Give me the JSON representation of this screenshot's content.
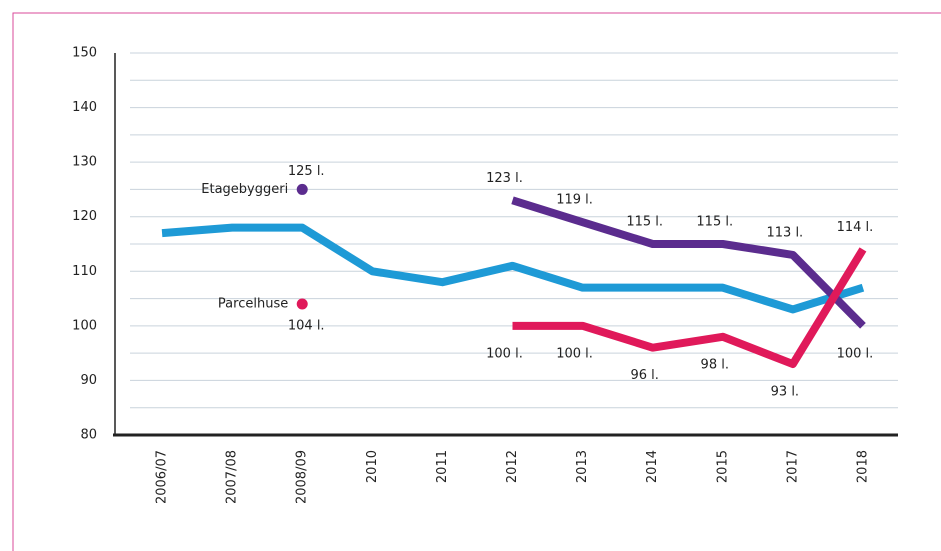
{
  "chart_data": {
    "type": "line",
    "categories": [
      "2006/07",
      "2007/08",
      "2008/09",
      "2010",
      "2011",
      "2012",
      "2013",
      "2014",
      "2015",
      "2017",
      "2018"
    ],
    "series": [
      {
        "color": "#1e9ad6",
        "values": [
          117,
          118,
          118,
          110,
          108,
          111,
          107,
          107,
          107,
          103,
          107
        ]
      },
      {
        "name": "Etagebyggeri",
        "color": "#5b2c8e",
        "values": [
          null,
          null,
          null,
          null,
          null,
          123,
          119,
          115,
          115,
          113,
          100
        ],
        "value_labels": [
          null,
          null,
          null,
          null,
          null,
          "123 l.",
          "119 l.",
          "115 l.",
          "115 l.",
          "113 l.",
          "100 l."
        ],
        "legend_point": {
          "x": "2008/09",
          "value": 125,
          "label": "125 l."
        }
      },
      {
        "name": "Parcelhuse",
        "color": "#e0195a",
        "values": [
          null,
          null,
          null,
          null,
          null,
          100,
          100,
          96,
          98,
          93,
          114
        ],
        "value_labels": [
          null,
          null,
          null,
          null,
          null,
          "100 l.",
          "100 l.",
          "96 l.",
          "98 l.",
          "93 l.",
          "114 l."
        ],
        "legend_point": {
          "x": "2008/09",
          "value": 104,
          "label": "104 l."
        }
      }
    ],
    "ylim": [
      80,
      150
    ],
    "yticks": [
      80,
      90,
      100,
      110,
      120,
      130,
      140,
      150
    ],
    "grid": true,
    "minor_grid": true
  }
}
